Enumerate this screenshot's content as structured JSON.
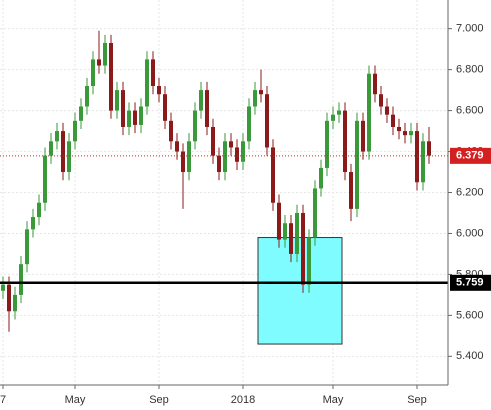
{
  "chart_data": {
    "type": "candlestick",
    "categories": [
      "7",
      null,
      null,
      null,
      null,
      null,
      null,
      null,
      null,
      null,
      null,
      null,
      "May",
      null,
      null,
      null,
      null,
      null,
      null,
      null,
      null,
      null,
      null,
      null,
      null,
      null,
      "Sep",
      null,
      null,
      null,
      null,
      null,
      null,
      null,
      null,
      null,
      null,
      null,
      null,
      null,
      "2018",
      null,
      null,
      null,
      null,
      null,
      null,
      null,
      null,
      null,
      null,
      null,
      null,
      null,
      null,
      "May",
      null,
      null,
      null,
      null,
      null,
      null,
      null,
      null,
      null,
      null,
      null,
      null,
      null,
      "Sep",
      null,
      null
    ],
    "open": [
      5.72,
      5.75,
      5.62,
      5.7,
      5.85,
      6.02,
      6.08,
      6.15,
      6.38,
      6.45,
      6.5,
      6.3,
      6.45,
      6.55,
      6.62,
      6.72,
      6.85,
      6.82,
      6.93,
      6.6,
      6.7,
      6.52,
      6.6,
      6.53,
      6.62,
      6.85,
      6.72,
      6.68,
      6.55,
      6.45,
      6.4,
      6.3,
      6.45,
      6.6,
      6.7,
      6.52,
      6.38,
      6.3,
      6.45,
      6.42,
      6.35,
      6.45,
      6.62,
      6.7,
      6.68,
      6.42,
      6.15,
      5.97,
      6.05,
      5.9,
      6.1,
      5.75,
      5.98,
      6.22,
      6.32,
      6.55,
      6.58,
      6.6,
      6.3,
      6.12,
      6.55,
      6.4,
      6.78,
      6.68,
      6.62,
      6.58,
      6.52,
      6.5,
      6.48,
      6.5,
      6.25,
      6.45
    ],
    "high": [
      5.79,
      5.79,
      5.74,
      5.89,
      6.06,
      6.12,
      6.19,
      6.42,
      6.49,
      6.54,
      6.54,
      6.49,
      6.59,
      6.66,
      6.76,
      6.89,
      6.99,
      6.97,
      6.97,
      6.74,
      6.74,
      6.64,
      6.64,
      6.66,
      6.89,
      6.89,
      6.76,
      6.72,
      6.59,
      6.49,
      6.44,
      6.49,
      6.64,
      6.74,
      6.74,
      6.56,
      6.42,
      6.49,
      6.49,
      6.46,
      6.49,
      6.66,
      6.74,
      6.8,
      6.72,
      6.46,
      6.19,
      6.09,
      6.09,
      6.14,
      6.14,
      6.02,
      6.26,
      6.36,
      6.59,
      6.62,
      6.64,
      6.64,
      6.34,
      6.59,
      6.59,
      6.82,
      6.82,
      6.72,
      6.66,
      6.62,
      6.56,
      6.54,
      6.54,
      6.54,
      6.49,
      6.52
    ],
    "low": [
      5.68,
      5.52,
      5.58,
      5.66,
      5.81,
      5.98,
      6.04,
      6.11,
      6.34,
      6.41,
      6.26,
      6.26,
      6.41,
      6.51,
      6.58,
      6.68,
      6.78,
      6.78,
      6.56,
      6.56,
      6.48,
      6.48,
      6.49,
      6.49,
      6.58,
      6.68,
      6.64,
      6.51,
      6.41,
      6.36,
      6.12,
      6.26,
      6.41,
      6.56,
      6.48,
      6.34,
      6.26,
      6.26,
      6.38,
      6.31,
      6.31,
      6.41,
      6.58,
      6.64,
      6.38,
      6.11,
      5.93,
      5.93,
      5.86,
      5.86,
      5.71,
      5.71,
      5.94,
      6.18,
      6.28,
      6.51,
      6.54,
      6.26,
      6.06,
      6.08,
      6.36,
      6.36,
      6.64,
      6.58,
      6.54,
      6.48,
      6.46,
      6.44,
      6.44,
      6.21,
      6.21,
      6.34
    ],
    "close": [
      5.75,
      5.62,
      5.7,
      5.85,
      6.02,
      6.08,
      6.15,
      6.38,
      6.45,
      6.5,
      6.3,
      6.45,
      6.55,
      6.62,
      6.72,
      6.85,
      6.82,
      6.93,
      6.6,
      6.7,
      6.52,
      6.6,
      6.53,
      6.62,
      6.85,
      6.72,
      6.68,
      6.55,
      6.45,
      6.4,
      6.3,
      6.45,
      6.6,
      6.7,
      6.52,
      6.38,
      6.3,
      6.45,
      6.42,
      6.35,
      6.45,
      6.62,
      6.7,
      6.68,
      6.42,
      6.15,
      5.97,
      6.05,
      5.9,
      6.1,
      5.75,
      5.98,
      6.22,
      6.32,
      6.55,
      6.58,
      6.6,
      6.3,
      6.12,
      6.55,
      6.4,
      6.78,
      6.68,
      6.62,
      6.58,
      6.52,
      6.5,
      6.48,
      6.5,
      6.25,
      6.45,
      6.38
    ],
    "up_color": "#3a9a3a",
    "down_color": "#8b1a1a",
    "ylim": [
      5.26,
      7.14
    ],
    "yticks": [
      {
        "value": 5.4,
        "label": "5.400"
      },
      {
        "value": 5.6,
        "label": "5.600"
      },
      {
        "value": 5.8,
        "label": "5.800"
      },
      {
        "value": 6.0,
        "label": "6.000"
      },
      {
        "value": 6.2,
        "label": "6.200"
      },
      {
        "value": 6.4,
        "label": "6.400"
      },
      {
        "value": 6.6,
        "label": "6.600"
      },
      {
        "value": 6.8,
        "label": "6.800"
      },
      {
        "value": 7.0,
        "label": "7.000"
      }
    ],
    "grid": true,
    "price_lines": [
      {
        "value": 6.379,
        "color": "#d42020",
        "style": "dotted"
      },
      {
        "value": 5.759,
        "color": "#000000",
        "style": "solid"
      }
    ],
    "zone": {
      "start": 43,
      "end": 56,
      "ymin": 5.46,
      "ymax": 5.98,
      "color": "#7ffcff"
    }
  }
}
